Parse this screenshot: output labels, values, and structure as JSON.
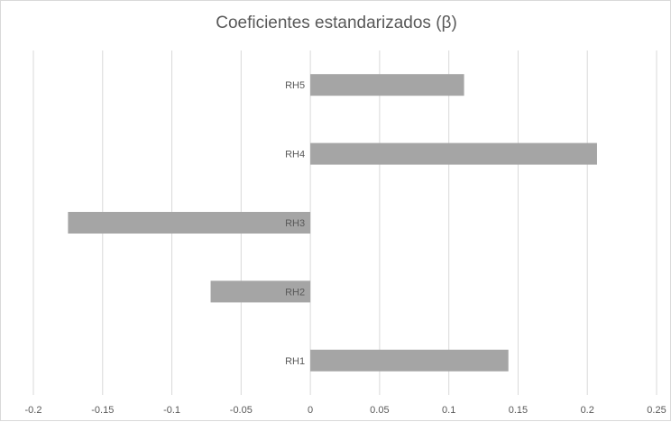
{
  "chart_data": {
    "type": "bar",
    "orientation": "horizontal",
    "title": "Coeficientes estandarizados (β)",
    "categories": [
      "RH1",
      "RH2",
      "RH3",
      "RH4",
      "RH5"
    ],
    "values": [
      0.143,
      -0.072,
      -0.175,
      0.207,
      0.111
    ],
    "xlim": [
      -0.2,
      0.25
    ],
    "xticks": [
      -0.2,
      -0.15,
      -0.1,
      -0.05,
      0,
      0.05,
      0.1,
      0.15,
      0.2,
      0.25
    ],
    "xtick_labels": [
      "-0.2",
      "-0.15",
      "-0.1",
      "-0.05",
      "0",
      "0.05",
      "0.1",
      "0.15",
      "0.2",
      "0.25"
    ],
    "xlabel": "",
    "ylabel": "",
    "grid": "vertical",
    "legend": "none",
    "bar_color": "#a5a5a5",
    "grid_color": "#d9d9d9"
  }
}
